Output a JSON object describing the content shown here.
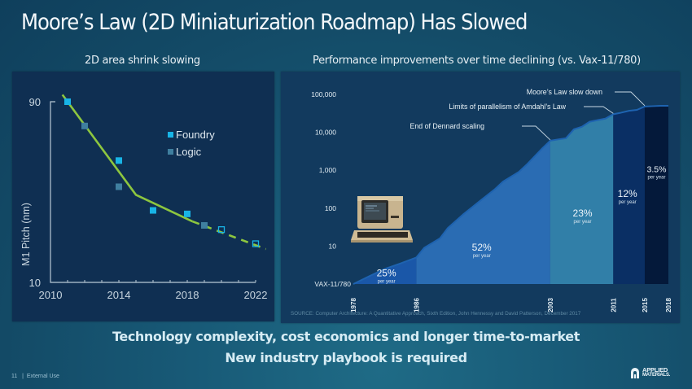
{
  "slide": {
    "title": "Moore’s Law (2D Miniaturization Roadmap) Has Slowed",
    "left_subtitle": "2D area shrink slowing",
    "right_subtitle": "Performance improvements over time declining (vs. Vax-11/780)",
    "bottom_line_1": "Technology complexity, cost economics and longer time-to-market",
    "bottom_line_2": "New industry playbook is required",
    "footer_page": "11",
    "footer_separator": "|",
    "footer_label": "External Use",
    "logo_line_1": "APPLIED",
    "logo_line_2": "MATERIALS.",
    "logo_icon": "applied-materials-logo-icon"
  },
  "colors": {
    "foundry": "#18b4e6",
    "logic": "#3f7f9f",
    "trend": "#8dc63f",
    "era_1": "#1a57a8",
    "era_2": "#2a6cb3",
    "era_3": "#317fa8",
    "era_4": "#0a2f64",
    "era_5": "#04193a"
  },
  "chart_data": [
    {
      "type": "scatter",
      "title": "2D area shrink slowing",
      "xlabel": "",
      "ylabel": "M1 Pitch (nm)",
      "xlim": [
        2010,
        2022
      ],
      "ylim": [
        10,
        90
      ],
      "y_scale": "log",
      "x_ticks": [
        "2010",
        "2014",
        "2018",
        "2022"
      ],
      "y_ticks": [
        "90",
        "10"
      ],
      "legend": [
        "Foundry",
        "Logic"
      ],
      "legend_position": "top-right",
      "series": [
        {
          "name": "Foundry",
          "points": [
            {
              "x": 2011,
              "y": 90,
              "filled": true
            },
            {
              "x": 2014,
              "y": 44,
              "filled": true
            },
            {
              "x": 2016,
              "y": 24,
              "filled": true
            },
            {
              "x": 2018,
              "y": 23,
              "filled": true
            },
            {
              "x": 2020,
              "y": 19,
              "filled": false
            },
            {
              "x": 2022,
              "y": 16,
              "filled": false
            }
          ]
        },
        {
          "name": "Logic",
          "points": [
            {
              "x": 2012,
              "y": 67,
              "filled": true
            },
            {
              "x": 2014,
              "y": 32,
              "filled": true
            },
            {
              "x": 2019,
              "y": 20,
              "filled": true
            }
          ]
        }
      ],
      "trend_line": {
        "solid": [
          [
            2010.7,
            98
          ],
          [
            2015,
            29
          ],
          [
            2018.3,
            21
          ]
        ],
        "dashed": [
          [
            2018.3,
            21
          ],
          [
            2022.6,
            15
          ]
        ]
      }
    },
    {
      "type": "area",
      "title": "Performance improvements over time declining (vs. Vax-11/780)",
      "xlabel": "",
      "ylabel": "",
      "y_scale": "log",
      "xlim": [
        1978,
        2018
      ],
      "ylim": [
        1,
        100000
      ],
      "y_ticks": [
        "VAX-11/780",
        "10",
        "100",
        "1,000",
        "10,000",
        "100,000"
      ],
      "y_tick_values": [
        1,
        10,
        100,
        1000,
        10000,
        100000
      ],
      "x_ticks": [
        "1978",
        "1986",
        "2003",
        "2011",
        "2015",
        "2018"
      ],
      "x_tick_values": [
        1978,
        1986,
        2003,
        2011,
        2015,
        2018
      ],
      "curve": [
        [
          1978,
          1
        ],
        [
          1980,
          1.6
        ],
        [
          1982,
          2.5
        ],
        [
          1984,
          3.5
        ],
        [
          1986,
          5
        ],
        [
          1987,
          9
        ],
        [
          1989,
          16
        ],
        [
          1990,
          30
        ],
        [
          1992,
          70
        ],
        [
          1994,
          150
        ],
        [
          1996,
          320
        ],
        [
          1997,
          500
        ],
        [
          1999,
          900
        ],
        [
          2000,
          1400
        ],
        [
          2001,
          2300
        ],
        [
          2002,
          3800
        ],
        [
          2003,
          6000
        ],
        [
          2004,
          6500
        ],
        [
          2005,
          7000
        ],
        [
          2006,
          12000
        ],
        [
          2007,
          14000
        ],
        [
          2008,
          19000
        ],
        [
          2009,
          21000
        ],
        [
          2010,
          23000
        ],
        [
          2011,
          30000
        ],
        [
          2012,
          33000
        ],
        [
          2013,
          37000
        ],
        [
          2014,
          39000
        ],
        [
          2015,
          48000
        ],
        [
          2016,
          49000
        ],
        [
          2017,
          50000
        ],
        [
          2018,
          50000
        ]
      ],
      "eras": [
        {
          "from": 1978,
          "to": 1986,
          "rate": "25%",
          "unit": "per year"
        },
        {
          "from": 1986,
          "to": 2003,
          "rate": "52%",
          "unit": "per year"
        },
        {
          "from": 2003,
          "to": 2011,
          "rate": "23%",
          "unit": "per year"
        },
        {
          "from": 2011,
          "to": 2015,
          "rate": "12%",
          "unit": "per year"
        },
        {
          "from": 2015,
          "to": 2018,
          "rate": "3.5%",
          "unit": "per year"
        }
      ],
      "annotations": [
        {
          "text": "End of Dennard scaling",
          "x": 2003
        },
        {
          "text": "Limits of parallelism of Amdahl’s Law",
          "x": 2011
        },
        {
          "text": "Moore’s Law slow down",
          "x": 2015
        }
      ],
      "source": "SOURCE: Computer Architecture: A Quantitative Approach, Sixth Edition, John Hennessy and David Patterson, December 2017",
      "image": "vax-terminal-computer-icon"
    }
  ]
}
